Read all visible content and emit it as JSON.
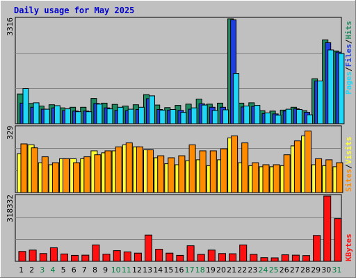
{
  "title": "Daily usage for May 2025",
  "colors": {
    "background": "#c0c0c0",
    "hits": "#1f8a5f",
    "files": "#1e3fe0",
    "pages": "#21d7f6",
    "visits": "#ffff33",
    "sites": "#ff8c00",
    "kbytes": "#ff1111",
    "title": "#0000cc",
    "weekday_label": "#000000",
    "weekend_label": "#008040"
  },
  "chart_data": [
    {
      "type": "bar",
      "name": "pages-files-hits",
      "ymax_label": "3316",
      "ylim": [
        0,
        3316
      ],
      "legend": [
        "Pages",
        "/",
        "Files",
        "/",
        "Hits"
      ],
      "categories": [
        "1",
        "2",
        "3",
        "4",
        "5",
        "6",
        "7",
        "8",
        "9",
        "10",
        "11",
        "12",
        "13",
        "14",
        "15",
        "16",
        "17",
        "18",
        "19",
        "20",
        "21",
        "22",
        "23",
        "24",
        "25",
        "26",
        "27",
        "28",
        "29",
        "30",
        "31"
      ],
      "series": [
        {
          "name": "Hits",
          "values": [
            940,
            640,
            560,
            600,
            500,
            520,
            520,
            800,
            650,
            610,
            560,
            600,
            920,
            590,
            510,
            580,
            620,
            780,
            620,
            650,
            3316,
            650,
            660,
            410,
            400,
            430,
            520,
            410,
            1420,
            2650,
            2300
          ]
        },
        {
          "name": "Files",
          "values": [
            650,
            520,
            460,
            500,
            410,
            400,
            400,
            640,
            500,
            420,
            410,
            450,
            790,
            450,
            430,
            420,
            460,
            630,
            520,
            520,
            3280,
            530,
            550,
            320,
            310,
            400,
            470,
            360,
            1350,
            2560,
            2260
          ]
        },
        {
          "name": "Pages",
          "values": [
            1110,
            660,
            460,
            570,
            470,
            380,
            380,
            620,
            470,
            520,
            460,
            520,
            880,
            430,
            450,
            360,
            500,
            590,
            420,
            440,
            1590,
            560,
            580,
            340,
            270,
            460,
            450,
            280,
            1350,
            2330,
            2220
          ]
        }
      ]
    },
    {
      "type": "bar",
      "name": "visits-sites",
      "ymax_label": "329",
      "ylim": [
        0,
        329
      ],
      "legend": [
        "Sites",
        "/",
        "Visits"
      ],
      "categories": [
        "1",
        "2",
        "3",
        "4",
        "5",
        "6",
        "7",
        "8",
        "9",
        "10",
        "11",
        "12",
        "13",
        "14",
        "15",
        "16",
        "17",
        "18",
        "19",
        "20",
        "21",
        "22",
        "23",
        "24",
        "25",
        "26",
        "27",
        "28",
        "29",
        "30",
        "31"
      ],
      "series": [
        {
          "name": "Visits",
          "values": [
            196,
            240,
            150,
            140,
            170,
            170,
            170,
            210,
            200,
            210,
            240,
            230,
            215,
            175,
            145,
            140,
            160,
            165,
            135,
            165,
            275,
            150,
            135,
            130,
            130,
            135,
            235,
            285,
            140,
            135,
            130
          ]
        },
        {
          "name": "Sites",
          "values": [
            245,
            225,
            180,
            150,
            170,
            150,
            180,
            190,
            210,
            230,
            250,
            230,
            215,
            185,
            175,
            185,
            240,
            210,
            210,
            220,
            285,
            250,
            150,
            140,
            140,
            190,
            260,
            310,
            170,
            165,
            150
          ]
        }
      ]
    },
    {
      "type": "bar",
      "name": "kbytes",
      "ymax_label": "318332",
      "ylim": [
        0,
        318332
      ],
      "legend": [
        "KBytes"
      ],
      "categories": [
        "1",
        "2",
        "3",
        "4",
        "5",
        "6",
        "7",
        "8",
        "9",
        "10",
        "11",
        "12",
        "13",
        "14",
        "15",
        "16",
        "17",
        "18",
        "19",
        "20",
        "21",
        "22",
        "23",
        "24",
        "25",
        "26",
        "27",
        "28",
        "29",
        "30",
        "31"
      ],
      "series": [
        {
          "name": "KBytes",
          "values": [
            48000,
            55000,
            38000,
            66000,
            36000,
            29000,
            30000,
            80000,
            35000,
            52000,
            46000,
            40000,
            128000,
            59000,
            40000,
            29000,
            76000,
            34000,
            55000,
            38000,
            37000,
            80000,
            34000,
            18000,
            17000,
            32000,
            30000,
            28000,
            126000,
            318332,
            208000
          ]
        }
      ]
    }
  ],
  "x_axis": {
    "days": [
      "1",
      "2",
      "3",
      "4",
      "5",
      "6",
      "7",
      "8",
      "9",
      "10",
      "11",
      "12",
      "13",
      "14",
      "15",
      "16",
      "17",
      "18",
      "19",
      "20",
      "21",
      "22",
      "23",
      "24",
      "25",
      "26",
      "27",
      "28",
      "29",
      "30",
      "31"
    ],
    "weekend": [
      false,
      false,
      true,
      true,
      false,
      false,
      false,
      false,
      false,
      true,
      true,
      false,
      false,
      false,
      false,
      false,
      true,
      true,
      false,
      false,
      false,
      false,
      false,
      true,
      true,
      false,
      false,
      false,
      false,
      false,
      true
    ]
  }
}
